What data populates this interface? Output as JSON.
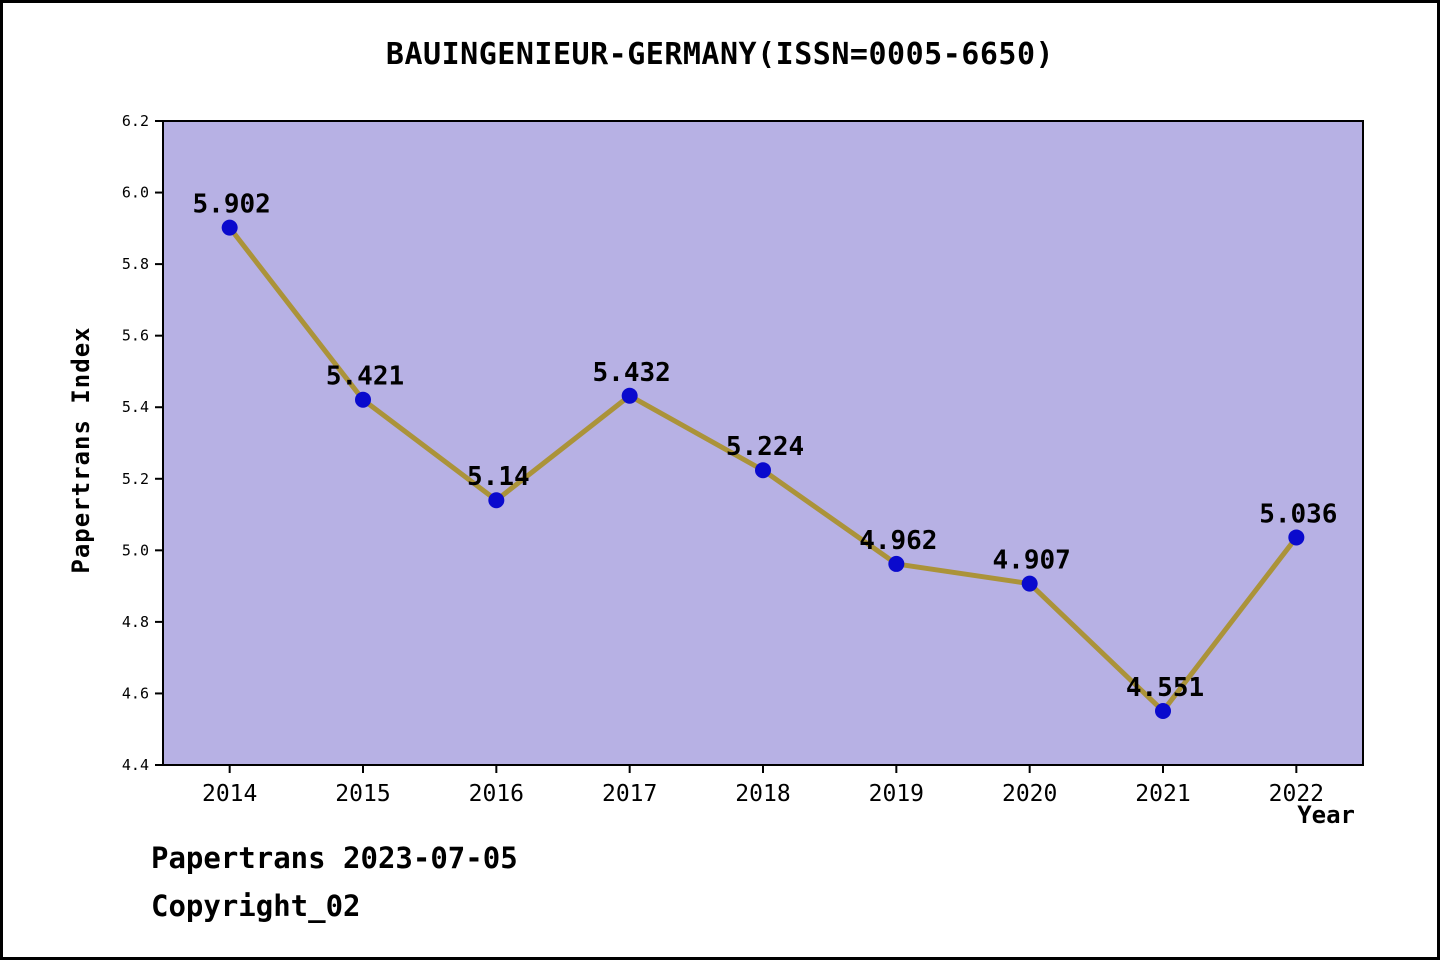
{
  "title": "BAUINGENIEUR-GERMANY(ISSN=0005-6650)",
  "footer": {
    "date_line": "Papertrans 2023-07-05",
    "copyright_line": "Copyright_02"
  },
  "chart_data": {
    "type": "line",
    "title": "BAUINGENIEUR-GERMANY(ISSN=0005-6650)",
    "x": [
      "2014",
      "2015",
      "2016",
      "2017",
      "2018",
      "2019",
      "2020",
      "2021",
      "2022"
    ],
    "values": [
      5.902,
      5.421,
      5.14,
      5.432,
      5.224,
      4.962,
      4.907,
      4.551,
      5.036
    ],
    "point_labels": [
      "5.902",
      "5.421",
      "5.14",
      "5.432",
      "5.224",
      "4.962",
      "4.907",
      "4.551",
      "5.036"
    ],
    "xlabel": "Year",
    "ylabel": "Papertrans Index",
    "ylim": [
      4.4,
      6.2
    ],
    "yticks": [
      "4.4",
      "4.6",
      "4.8",
      "5.0",
      "5.2",
      "5.4",
      "5.6",
      "5.8",
      "6.0",
      "6.2"
    ],
    "grid": false,
    "legend": "none",
    "colors": {
      "plot_background": "#b7b1e4",
      "line": "#ab9339",
      "marker": "#0a0acd",
      "text": "#000000",
      "axis": "#000000"
    }
  }
}
